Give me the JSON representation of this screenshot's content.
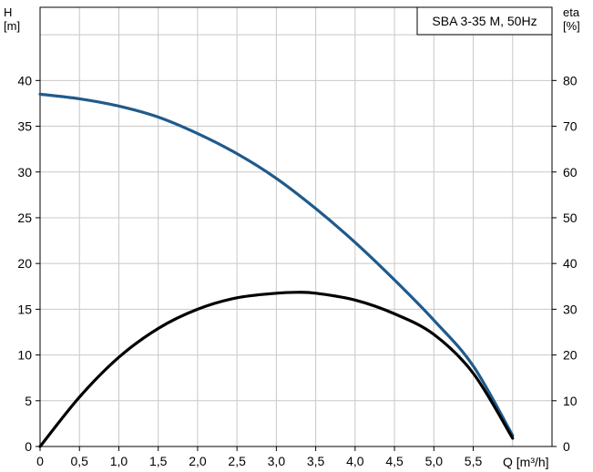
{
  "chart_data": {
    "type": "line",
    "title": "SBA 3-35 M, 50Hz",
    "left_axis": {
      "label": "H",
      "unit": "[m]",
      "ticks": [
        "0",
        "5",
        "10",
        "15",
        "20",
        "25",
        "30",
        "35",
        "40"
      ],
      "range": [
        0,
        48
      ]
    },
    "right_axis": {
      "label": "eta",
      "unit": "[%]",
      "ticks": [
        "0",
        "10",
        "20",
        "30",
        "40",
        "50",
        "60",
        "70",
        "80"
      ],
      "range": [
        0,
        96
      ]
    },
    "x_axis": {
      "label": "Q [m³/h]",
      "ticks": [
        "0",
        "0,5",
        "1,0",
        "1,5",
        "2,0",
        "2,5",
        "3,0",
        "3,5",
        "4,0",
        "4,5",
        "5,0",
        "5,5"
      ],
      "range": [
        0,
        6.5
      ]
    },
    "grid": true,
    "series": [
      {
        "axis": "left",
        "color": "#1f5a8c",
        "x": [
          0,
          0.5,
          1.0,
          1.5,
          2.0,
          2.5,
          3.0,
          3.5,
          4.0,
          4.5,
          5.0,
          5.5,
          6.0
        ],
        "values": [
          38.5,
          38.0,
          37.2,
          36.0,
          34.2,
          32.0,
          29.3,
          26.0,
          22.3,
          18.2,
          13.8,
          8.8,
          1.2
        ]
      },
      {
        "axis": "right",
        "color": "#000000",
        "x": [
          0,
          0.5,
          1.0,
          1.5,
          2.0,
          2.5,
          3.0,
          3.25,
          3.5,
          4.0,
          4.5,
          5.0,
          5.5,
          6.0
        ],
        "values": [
          0,
          10.8,
          19.5,
          25.8,
          30.0,
          32.5,
          33.5,
          33.7,
          33.5,
          32.0,
          29.0,
          24.5,
          16.0,
          1.8
        ]
      }
    ]
  }
}
